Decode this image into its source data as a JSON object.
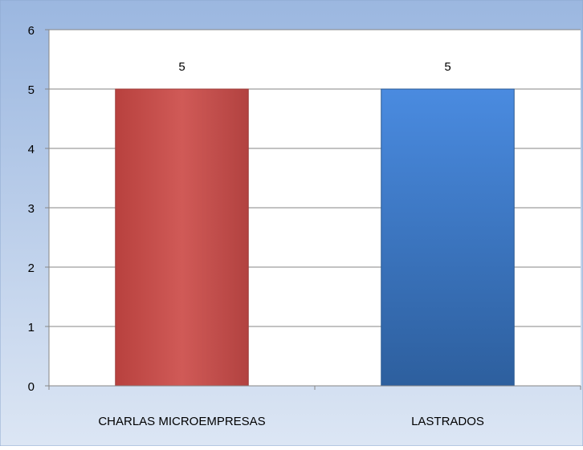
{
  "chart_data": {
    "type": "bar",
    "categories": [
      "CHARLAS MICROEMPRESAS",
      "LASTRADOS"
    ],
    "values": [
      5,
      5
    ],
    "data_labels": [
      "5",
      "5"
    ],
    "y_ticks": [
      "0",
      "1",
      "2",
      "3",
      "4",
      "5",
      "6"
    ],
    "ylim": [
      0,
      6
    ],
    "grid": true,
    "legend": "none",
    "colors": {
      "bars": [
        "#C0504D",
        "#4F81BD"
      ],
      "background_top": "#9BB7E0",
      "background_bottom": "#DCE6F4",
      "plot_area": "#FFFFFF",
      "grid": "#868686",
      "axis": "#868686",
      "text": "#000000"
    }
  }
}
